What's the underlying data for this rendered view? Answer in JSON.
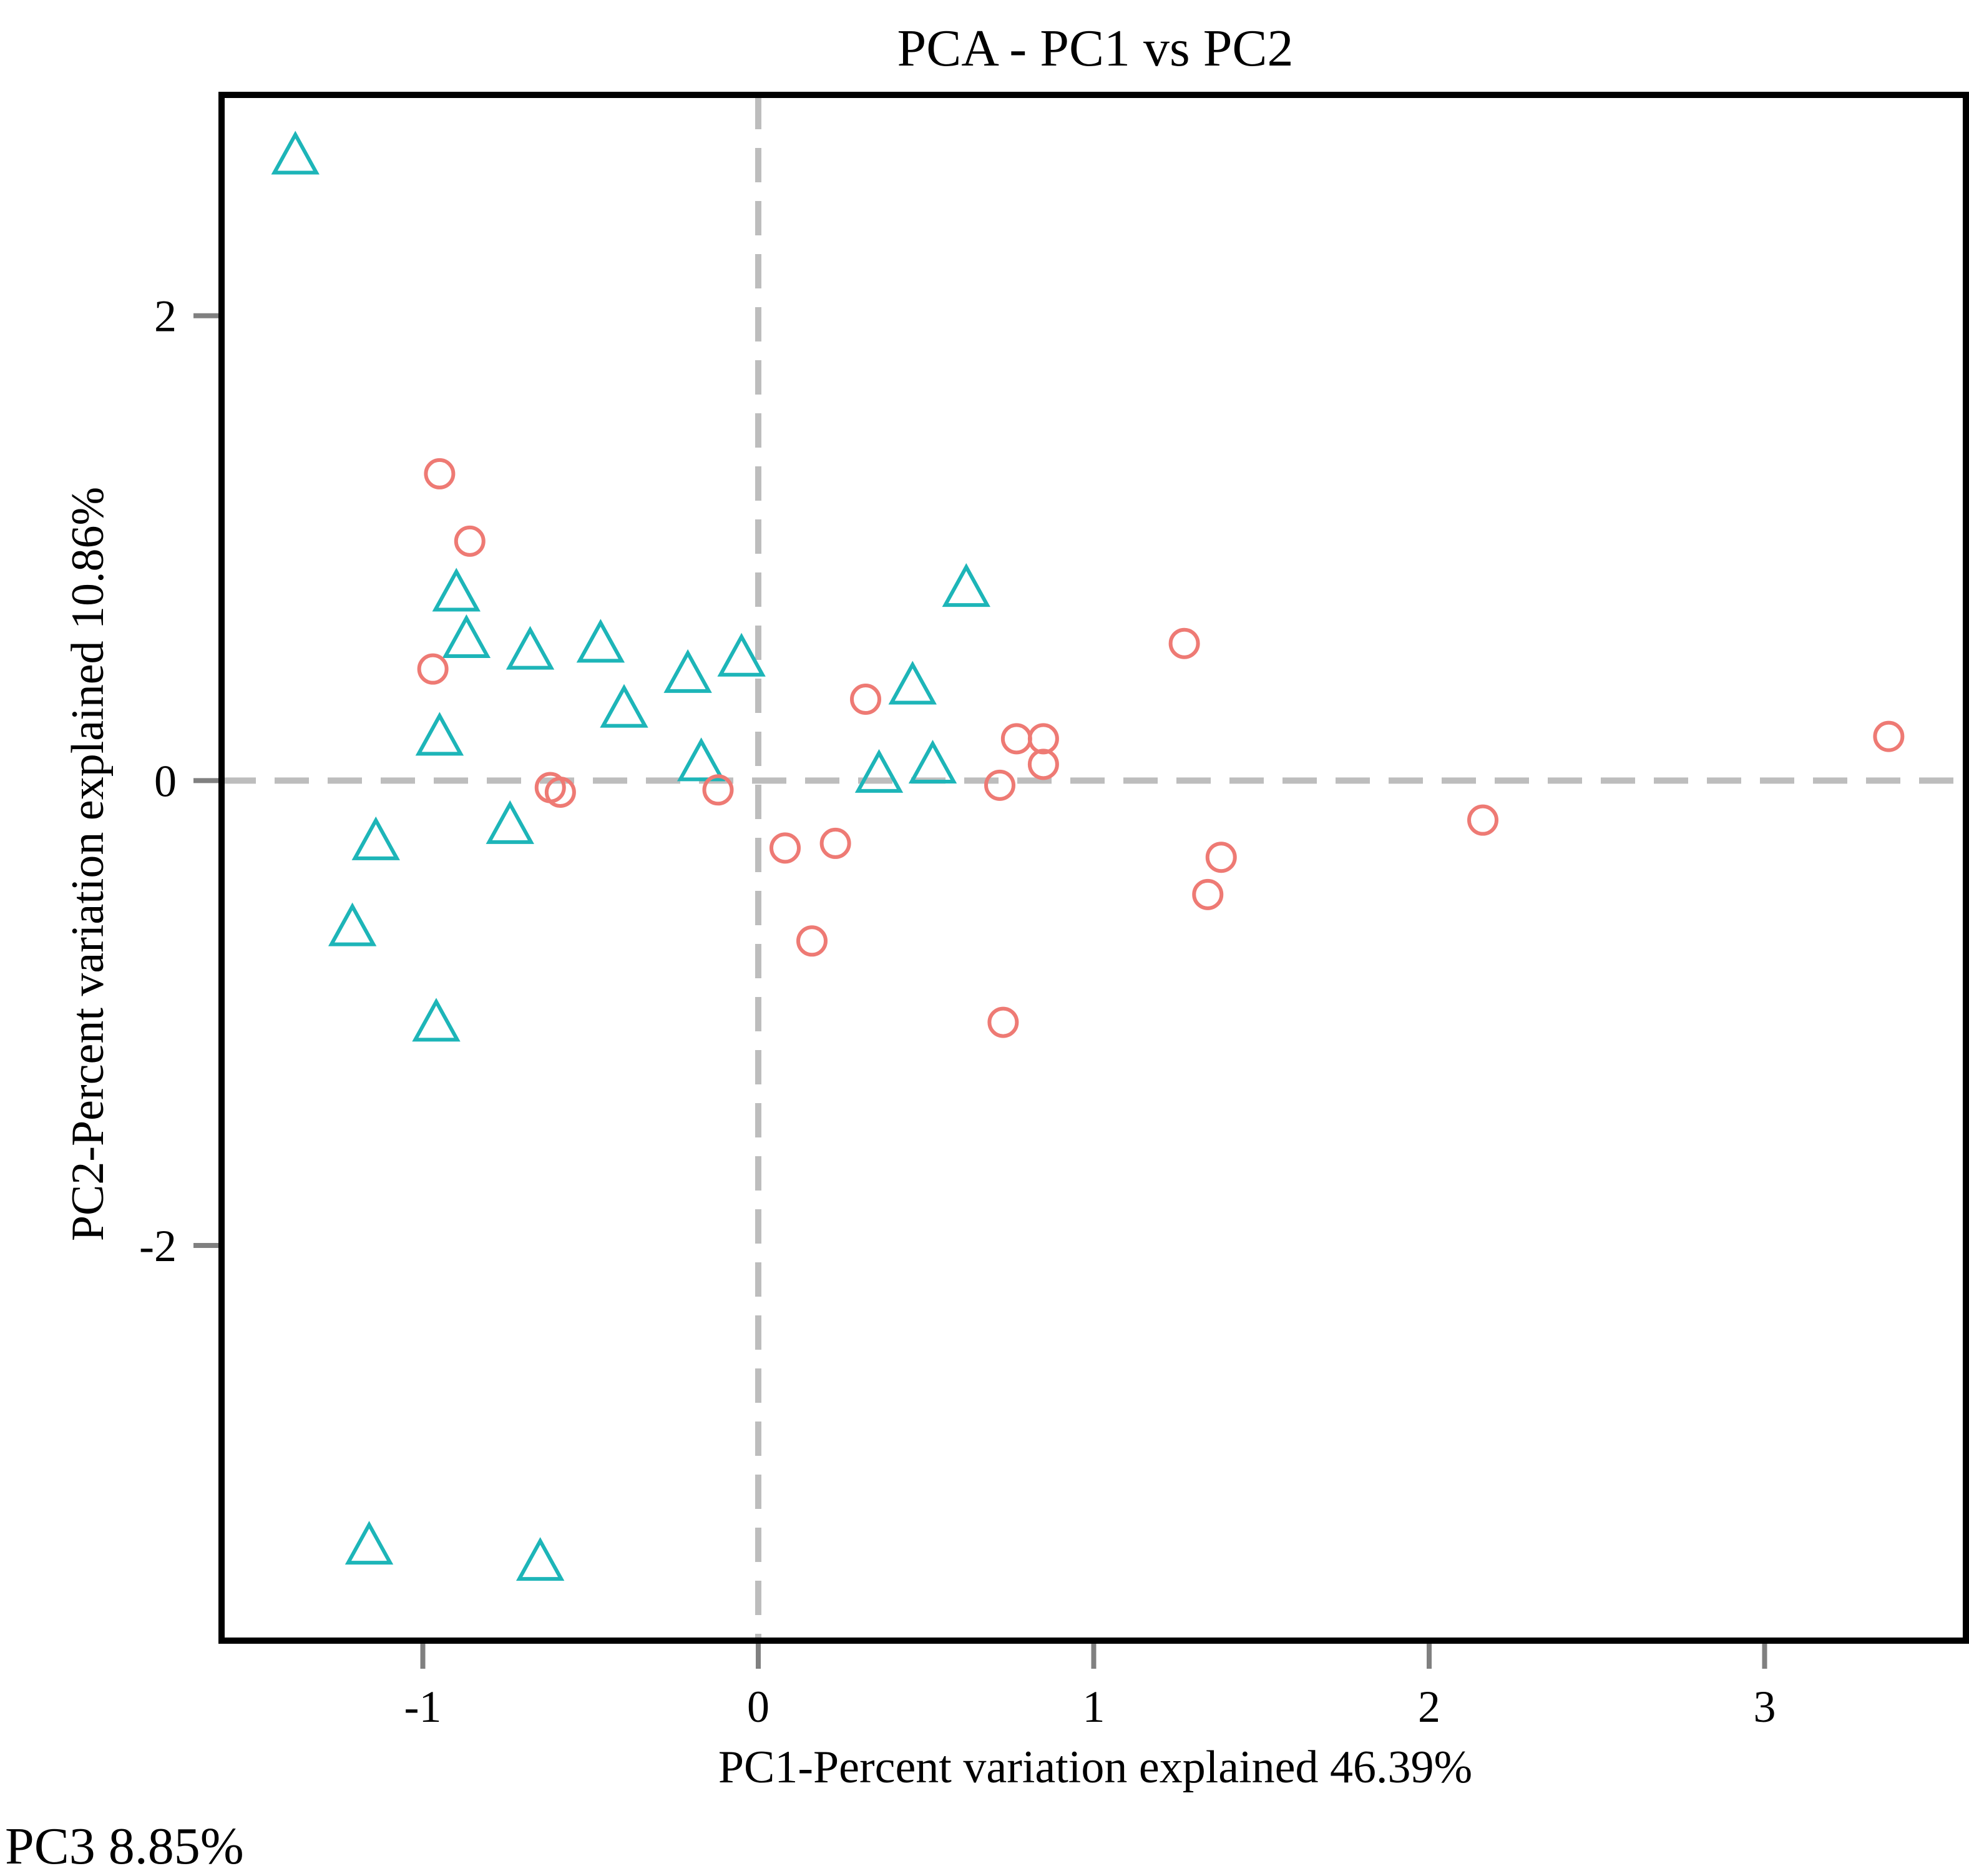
{
  "chart_data": {
    "type": "scatter",
    "title": "PCA - PC1 vs PC2",
    "xlabel": "PC1-Percent variation explained 46.39%",
    "ylabel": "PC2-Percent variation explained 10.86%",
    "xlim": [
      -1.6,
      3.6
    ],
    "ylim": [
      -3.7,
      2.95
    ],
    "x_ticks": [
      -1,
      0,
      1,
      2,
      3
    ],
    "y_ticks": [
      -2,
      0,
      2
    ],
    "x_tick_labels": [
      "-1",
      "0",
      "1",
      "2",
      "3"
    ],
    "y_tick_labels": [
      "-2",
      "0",
      "2"
    ],
    "reference_lines": {
      "x": 0,
      "y": 0,
      "style": "dashed"
    },
    "grid": false,
    "legend": "none",
    "series": [
      {
        "marker": "triangle",
        "color": "#1DB5B8",
        "points": [
          [
            -1.38,
            2.68
          ],
          [
            -0.9,
            0.8
          ],
          [
            -0.87,
            0.6
          ],
          [
            -0.68,
            0.55
          ],
          [
            -0.47,
            0.58
          ],
          [
            -0.4,
            0.3
          ],
          [
            -0.21,
            0.45
          ],
          [
            -0.05,
            0.52
          ],
          [
            -0.95,
            0.18
          ],
          [
            -0.17,
            0.07
          ],
          [
            0.62,
            0.82
          ],
          [
            0.46,
            0.4
          ],
          [
            0.36,
            0.02
          ],
          [
            0.52,
            0.06
          ],
          [
            -0.74,
            -0.2
          ],
          [
            -1.14,
            -0.27
          ],
          [
            -1.21,
            -0.64
          ],
          [
            -0.96,
            -1.05
          ],
          [
            -1.16,
            -3.3
          ],
          [
            -0.65,
            -3.37
          ]
        ]
      },
      {
        "marker": "circle",
        "color": "#EE7A74",
        "points": [
          [
            -0.95,
            1.32
          ],
          [
            -0.86,
            1.03
          ],
          [
            -0.97,
            0.48
          ],
          [
            -0.62,
            -0.03
          ],
          [
            -0.59,
            -0.05
          ],
          [
            -0.12,
            -0.04
          ],
          [
            0.08,
            -0.29
          ],
          [
            0.23,
            -0.27
          ],
          [
            0.16,
            -0.69
          ],
          [
            0.32,
            0.35
          ],
          [
            0.72,
            -0.02
          ],
          [
            0.77,
            0.18
          ],
          [
            0.85,
            0.18
          ],
          [
            0.85,
            0.07
          ],
          [
            0.73,
            -1.04
          ],
          [
            1.27,
            0.59
          ],
          [
            1.34,
            -0.49
          ],
          [
            1.38,
            -0.33
          ],
          [
            2.16,
            -0.17
          ],
          [
            3.37,
            0.19
          ]
        ]
      }
    ]
  },
  "footnote": "PC3 8.85%"
}
